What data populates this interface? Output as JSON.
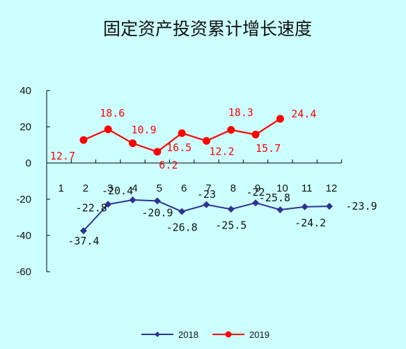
{
  "chart_data": {
    "type": "line",
    "title": "固定资产投资累计增长速度",
    "xlabel": "",
    "ylabel": "",
    "ylim": [
      -60,
      40
    ],
    "y_ticks": [
      40,
      20,
      0,
      -20,
      -40,
      -60
    ],
    "categories": [
      "1",
      "2",
      "3",
      "4",
      "5",
      "6",
      "7",
      "8",
      "9",
      "10",
      "11",
      "12"
    ],
    "legend_position": "bottom",
    "series": [
      {
        "name": "2018",
        "color": "#2e3192",
        "marker": "diamond",
        "x": [
          2,
          3,
          4,
          5,
          6,
          7,
          8,
          9,
          10,
          11,
          12
        ],
        "values": [
          -37.4,
          -22.8,
          -20.4,
          -20.9,
          -26.8,
          -23,
          -25.5,
          -22,
          -25.8,
          -24.2,
          -23.9
        ],
        "labels": [
          "-37.4",
          "-22.8",
          "-20.4",
          "-20.9",
          "-26.8",
          "-23",
          "-25.5",
          "-22",
          "-25.8",
          "-24.2",
          "-23.9"
        ]
      },
      {
        "name": "2019",
        "color": "#ff0000",
        "marker": "circle",
        "x": [
          2,
          3,
          4,
          5,
          6,
          7,
          8,
          9,
          10
        ],
        "values": [
          12.7,
          18.6,
          10.9,
          6.2,
          16.5,
          12.2,
          18.3,
          15.7,
          24.4
        ],
        "labels": [
          "12.7",
          "18.6",
          "10.9",
          "6.2",
          "16.5",
          "12.2",
          "18.3",
          "15.7",
          "24.4"
        ]
      }
    ]
  }
}
